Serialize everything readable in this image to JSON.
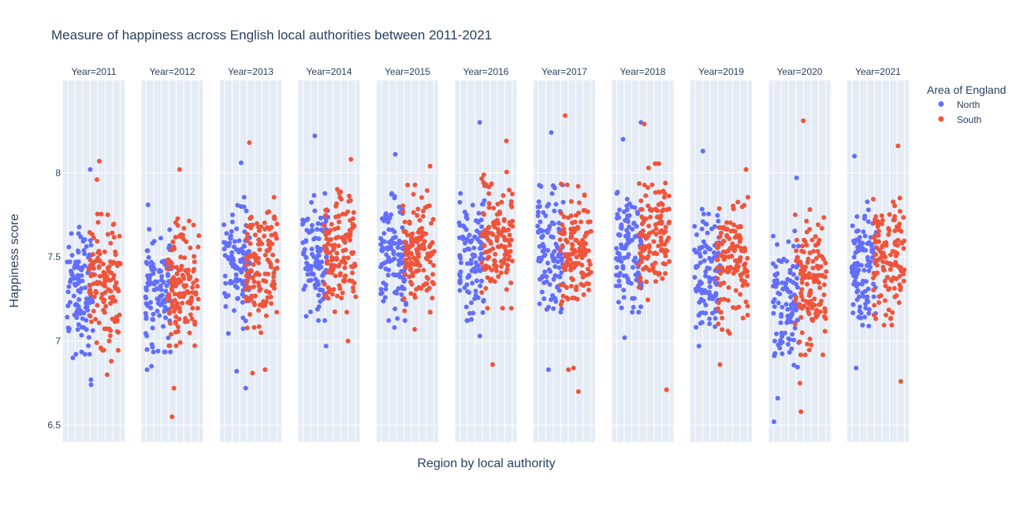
{
  "chart_data": {
    "type": "scatter",
    "title": "Measure of happiness across English local authorities between 2011-2021",
    "xlabel": "Region by local authority",
    "ylabel": "Happiness score",
    "ylim": [
      6.4,
      8.55
    ],
    "yticks": [
      6.5,
      7,
      7.5,
      8
    ],
    "ytick_labels": [
      "6.5",
      "7",
      "7.5",
      "8"
    ],
    "grid": true,
    "legend": {
      "title": "Area of England",
      "position": "top-right",
      "items": [
        {
          "name": "North",
          "color": "#636efa"
        },
        {
          "name": "South",
          "color": "#ef553b"
        }
      ]
    },
    "facets": [
      {
        "label": "Year=2011",
        "year": 2011,
        "north": {
          "center": 7.3,
          "spread": 0.28,
          "n": 110,
          "outliers": [
            8.02,
            6.74,
            6.77,
            6.9
          ]
        },
        "south": {
          "center": 7.35,
          "spread": 0.3,
          "n": 130,
          "outliers": [
            8.07,
            7.96,
            6.8,
            6.88
          ]
        }
      },
      {
        "label": "Year=2012",
        "year": 2012,
        "north": {
          "center": 7.3,
          "spread": 0.27,
          "n": 110,
          "outliers": [
            7.81,
            6.83,
            6.85
          ]
        },
        "south": {
          "center": 7.35,
          "spread": 0.28,
          "n": 130,
          "outliers": [
            8.02,
            6.72,
            6.55
          ]
        }
      },
      {
        "label": "Year=2013",
        "year": 2013,
        "north": {
          "center": 7.45,
          "spread": 0.3,
          "n": 110,
          "outliers": [
            8.06,
            6.72,
            6.82
          ]
        },
        "south": {
          "center": 7.45,
          "spread": 0.3,
          "n": 130,
          "outliers": [
            8.18,
            6.81,
            6.83
          ]
        }
      },
      {
        "label": "Year=2014",
        "year": 2014,
        "north": {
          "center": 7.5,
          "spread": 0.28,
          "n": 110,
          "outliers": [
            8.22,
            6.97
          ]
        },
        "south": {
          "center": 7.55,
          "spread": 0.28,
          "n": 130,
          "outliers": [
            8.08,
            7.0
          ]
        }
      },
      {
        "label": "Year=2015",
        "year": 2015,
        "north": {
          "center": 7.5,
          "spread": 0.28,
          "n": 110,
          "outliers": [
            8.11,
            7.08
          ]
        },
        "south": {
          "center": 7.55,
          "spread": 0.28,
          "n": 130,
          "outliers": [
            8.04,
            7.07
          ]
        }
      },
      {
        "label": "Year=2016",
        "year": 2016,
        "north": {
          "center": 7.5,
          "spread": 0.28,
          "n": 110,
          "outliers": [
            8.3,
            7.03
          ]
        },
        "south": {
          "center": 7.6,
          "spread": 0.3,
          "n": 130,
          "outliers": [
            8.19,
            6.86
          ]
        }
      },
      {
        "label": "Year=2017",
        "year": 2017,
        "north": {
          "center": 7.55,
          "spread": 0.28,
          "n": 110,
          "outliers": [
            8.24,
            6.83
          ]
        },
        "south": {
          "center": 7.55,
          "spread": 0.3,
          "n": 130,
          "outliers": [
            8.34,
            6.7,
            6.83,
            6.84
          ]
        }
      },
      {
        "label": "Year=2018",
        "year": 2018,
        "north": {
          "center": 7.55,
          "spread": 0.28,
          "n": 110,
          "outliers": [
            8.3,
            8.2,
            7.02
          ]
        },
        "south": {
          "center": 7.65,
          "spread": 0.3,
          "n": 130,
          "outliers": [
            8.29,
            6.71
          ]
        }
      },
      {
        "label": "Year=2019",
        "year": 2019,
        "north": {
          "center": 7.45,
          "spread": 0.28,
          "n": 110,
          "outliers": [
            8.13,
            6.97
          ]
        },
        "south": {
          "center": 7.45,
          "spread": 0.3,
          "n": 130,
          "outliers": [
            8.02,
            6.86
          ]
        }
      },
      {
        "label": "Year=2020",
        "year": 2020,
        "north": {
          "center": 7.25,
          "spread": 0.3,
          "n": 110,
          "outliers": [
            7.97,
            6.52,
            6.66
          ]
        },
        "south": {
          "center": 7.35,
          "spread": 0.32,
          "n": 130,
          "outliers": [
            8.31,
            6.58,
            6.75
          ]
        }
      },
      {
        "label": "Year=2021",
        "year": 2021,
        "north": {
          "center": 7.45,
          "spread": 0.28,
          "n": 110,
          "outliers": [
            8.1,
            6.84
          ]
        },
        "south": {
          "center": 7.5,
          "spread": 0.3,
          "n": 130,
          "outliers": [
            8.16,
            6.76
          ]
        }
      }
    ]
  }
}
